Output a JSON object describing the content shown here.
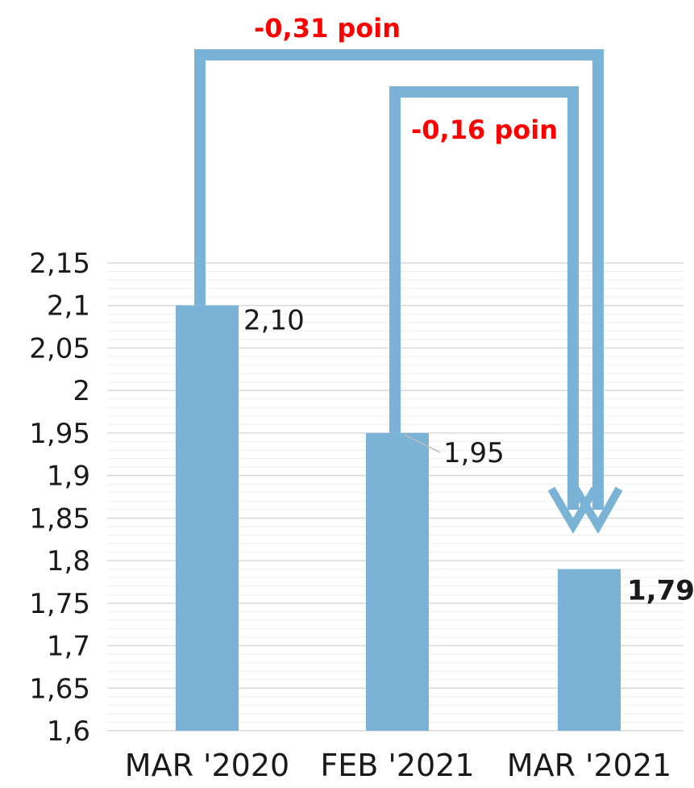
{
  "chart_data": {
    "type": "bar",
    "categories": [
      "MAR '2020",
      "FEB '2021",
      "MAR '2021"
    ],
    "values": [
      2.1,
      1.95,
      1.79
    ],
    "data_labels": [
      "2,10",
      "1,95",
      "1,79"
    ],
    "data_label_bold": [
      false,
      false,
      true
    ],
    "ylim": [
      1.6,
      2.15
    ],
    "yticks": [
      1.6,
      1.65,
      1.7,
      1.75,
      1.8,
      1.85,
      1.9,
      1.95,
      2,
      2.05,
      2.1,
      2.15
    ],
    "ytick_labels": [
      "1,6",
      "1,65",
      "1,7",
      "1,75",
      "1,8",
      "1,85",
      "1,9",
      "1,95",
      "2",
      "2,05",
      "2,1",
      "2,15"
    ],
    "grid": true,
    "title": "",
    "xlabel": "",
    "ylabel": "",
    "bar_color": "#7ab3d5",
    "annotations": [
      {
        "text": "-0,31 poin",
        "from": "MAR '2020",
        "to": "MAR '2021",
        "color": "#ff0000"
      },
      {
        "text": "-0,16 poin",
        "from": "FEB '2021",
        "to": "MAR '2021",
        "color": "#ff0000"
      }
    ]
  }
}
